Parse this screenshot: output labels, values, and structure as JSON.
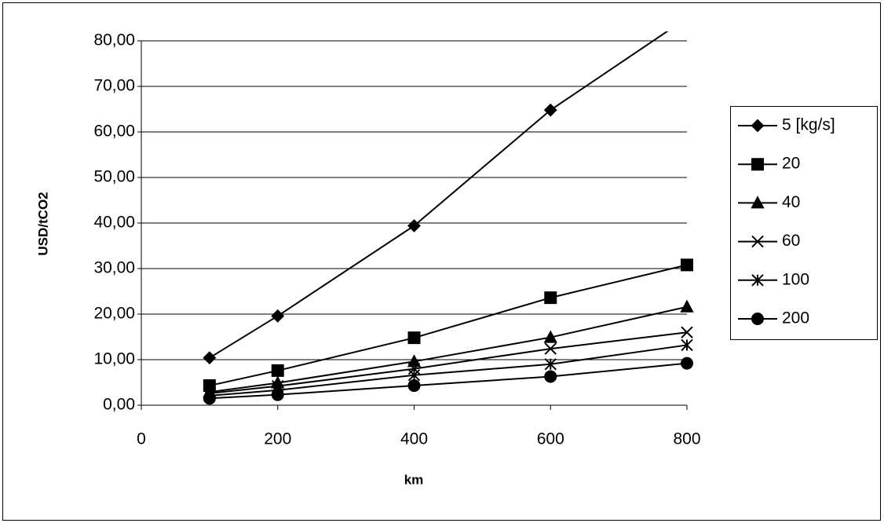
{
  "chart_data": {
    "type": "line",
    "xlabel": "km",
    "ylabel": "USD/tCO2",
    "x": [
      100,
      200,
      400,
      600,
      800
    ],
    "series": [
      {
        "name": "5 [kg/s]",
        "color": "#000000",
        "marker": "diamond",
        "values": [
          10.4,
          19.6,
          39.4,
          64.8,
          85
        ]
      },
      {
        "name": "20",
        "color": "#000000",
        "marker": "square",
        "values": [
          4.3,
          7.6,
          14.8,
          23.6,
          30.8
        ]
      },
      {
        "name": "40",
        "color": "#000000",
        "marker": "triangle",
        "values": [
          2.9,
          4.9,
          9.6,
          14.9,
          21.6
        ]
      },
      {
        "name": "60",
        "color": "#000000",
        "marker": "x",
        "values": [
          2.6,
          4.2,
          8.0,
          12.4,
          16.0
        ]
      },
      {
        "name": "100",
        "color": "#000000",
        "marker": "asterisk",
        "values": [
          2.1,
          3.3,
          6.6,
          9.0,
          13.2
        ]
      },
      {
        "name": "200",
        "color": "#000000",
        "marker": "circle",
        "values": [
          1.5,
          2.3,
          4.3,
          6.3,
          9.2
        ]
      }
    ],
    "xlim": [
      0,
      800
    ],
    "xticks": [
      0,
      200,
      400,
      600,
      800
    ],
    "ylim": [
      0,
      80
    ],
    "yticks": [
      {
        "value": 0,
        "label": "0,00"
      },
      {
        "value": 10,
        "label": "10,00"
      },
      {
        "value": 20,
        "label": "20,00"
      },
      {
        "value": 30,
        "label": "30,00"
      },
      {
        "value": 40,
        "label": "40,00"
      },
      {
        "value": 50,
        "label": "50,00"
      },
      {
        "value": 60,
        "label": "60,00"
      },
      {
        "value": 70,
        "label": "70,00"
      },
      {
        "value": 80,
        "label": "80,00"
      }
    ],
    "grid": true,
    "legend": "right"
  }
}
